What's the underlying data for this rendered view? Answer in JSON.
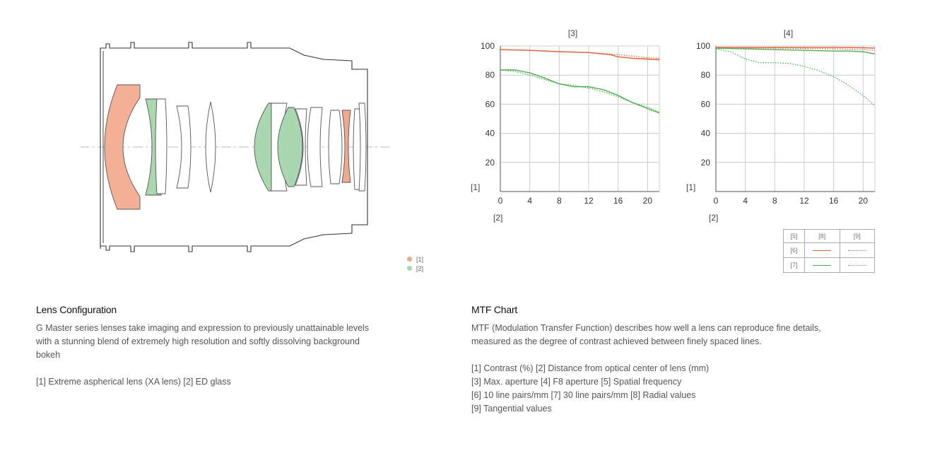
{
  "lens_diagram": {
    "legend": [
      {
        "label": "[1]",
        "color": "#f0a98a"
      },
      {
        "label": "[2]",
        "color": "#a9d8b0"
      }
    ]
  },
  "lens_section": {
    "title": "Lens Configuration",
    "lines": [
      "G Master series lenses take imaging and expression to previously unattainable levels",
      "with a stunning blend of extremely high resolution and softly dissolving background",
      "bokeh"
    ],
    "note": "[1] Extreme aspherical lens (XA lens) [2] ED glass"
  },
  "mtf_section": {
    "title": "MTF Chart",
    "lines": [
      "MTF (Modulation Transfer Function) describes how well a lens can reproduce fine details,",
      "measured as the degree of contrast achieved between finely spaced lines."
    ],
    "keys": [
      "[1] Contrast (%) [2] Distance from optical center of lens (mm)",
      "[3] Max. aperture [4] F8 aperture [5] Spatial frequency",
      "[6] 10 line pairs/mm [7] 30 line pairs/mm [8] Radial values",
      "[9] Tangential values"
    ]
  },
  "chart_legend": {
    "header": [
      "[5]",
      "[8]",
      "[9]"
    ],
    "rows": [
      {
        "label": "[6]",
        "color": "#e0603a"
      },
      {
        "label": "[7]",
        "color": "#4caf50"
      }
    ]
  },
  "colors": {
    "radial_10": "#e0603a",
    "sagittal_30": "#4caf50"
  },
  "chart_data": [
    {
      "type": "line",
      "title": "[3]",
      "ylabel": "[1]",
      "xlabel": "[2]",
      "xlim": [
        0,
        21.6
      ],
      "ylim": [
        0,
        100
      ],
      "xticks": [
        0,
        4,
        8,
        12,
        16,
        20
      ],
      "yticks": [
        20,
        40,
        60,
        80,
        100
      ],
      "grid": true,
      "series": [
        {
          "name": "[6] [8]",
          "color": "#e0603a",
          "style": "solid",
          "x": [
            0,
            4,
            8,
            12,
            15,
            16,
            18,
            20,
            21.6
          ],
          "y": [
            97.5,
            97,
            96,
            95.5,
            94,
            92.5,
            91.5,
            91,
            90.5
          ]
        },
        {
          "name": "[6] [9]",
          "color": "#e0603a",
          "style": "dotted",
          "x": [
            0,
            4,
            8,
            12,
            16,
            18,
            20,
            21.6
          ],
          "y": [
            97.5,
            97,
            96.2,
            95.5,
            94,
            93,
            92,
            91.5
          ]
        },
        {
          "name": "[7] [8]",
          "color": "#4caf50",
          "style": "solid",
          "x": [
            0,
            2,
            4,
            6,
            8,
            10,
            12,
            14,
            16,
            18,
            20,
            21.6
          ],
          "y": [
            83.5,
            83.5,
            81.5,
            78,
            74,
            72,
            72,
            70,
            66,
            61,
            57,
            54
          ]
        },
        {
          "name": "[7] [9]",
          "color": "#4caf50",
          "style": "dotted",
          "x": [
            0,
            2,
            4,
            6,
            8,
            10,
            12,
            14,
            16,
            18,
            20,
            21.6
          ],
          "y": [
            83.5,
            82.5,
            80,
            77,
            74,
            73,
            71,
            68.5,
            65,
            61,
            58,
            54.5
          ]
        }
      ]
    },
    {
      "type": "line",
      "title": "[4]",
      "ylabel": "[1]",
      "xlabel": "[2]",
      "xlim": [
        0,
        21.6
      ],
      "ylim": [
        0,
        100
      ],
      "xticks": [
        0,
        4,
        8,
        12,
        16,
        20
      ],
      "yticks": [
        20,
        40,
        60,
        80,
        100
      ],
      "grid": true,
      "series": [
        {
          "name": "[6] [8]",
          "color": "#e0603a",
          "style": "solid",
          "x": [
            0,
            4,
            8,
            12,
            16,
            20,
            21.6
          ],
          "y": [
            99,
            99,
            99,
            99,
            99,
            98.8,
            98.5
          ]
        },
        {
          "name": "[6] [9]",
          "color": "#e0603a",
          "style": "dotted",
          "x": [
            0,
            4,
            8,
            12,
            16,
            20,
            21.6
          ],
          "y": [
            98.5,
            98.5,
            98.5,
            98.3,
            98,
            97.5,
            97
          ]
        },
        {
          "name": "[7] [8]",
          "color": "#4caf50",
          "style": "solid",
          "x": [
            0,
            4,
            8,
            12,
            16,
            18,
            20,
            21.6
          ],
          "y": [
            98.5,
            98,
            97.5,
            97,
            96.5,
            96.5,
            96,
            94.5
          ]
        },
        {
          "name": "[7] [9]",
          "color": "#4caf50",
          "style": "dotted",
          "x": [
            0,
            2,
            4,
            6,
            8,
            10,
            12,
            14,
            16,
            18,
            20,
            21.6
          ],
          "y": [
            98,
            96,
            91,
            88.5,
            88.5,
            88,
            86,
            83,
            79,
            73,
            66,
            59
          ]
        }
      ]
    }
  ]
}
